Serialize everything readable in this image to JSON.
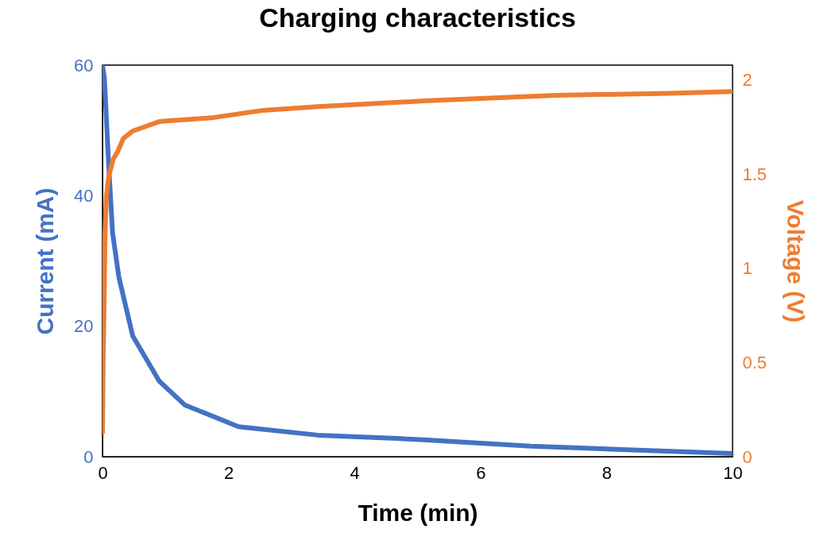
{
  "chart_data": {
    "type": "line",
    "title": "Charging characteristics",
    "xlabel": "Time (min)",
    "ylabel": "Current (mA)",
    "y2label": "Voltage (V)",
    "xlim": [
      0,
      10
    ],
    "xticks": [
      0,
      2,
      4,
      6,
      8,
      10
    ],
    "ylim": [
      0,
      60
    ],
    "yticks": [
      0,
      20,
      40,
      60
    ],
    "y2lim": [
      0,
      2.08
    ],
    "y2ticks": [
      0,
      0.5,
      1,
      1.5,
      2
    ],
    "grid": false,
    "line_style": "solid",
    "series": [
      {
        "color": "#4472c4",
        "x": [
          0,
          0.03,
          0.1,
          0.16,
          0.26,
          0.48,
          0.9,
          1.31,
          2.16,
          3.42,
          4.68,
          5.1,
          6.8,
          8.5,
          10
        ],
        "values": [
          60,
          58,
          44.4,
          34.3,
          27.5,
          18.5,
          11.6,
          7.9,
          4.6,
          3.3,
          2.8,
          2.6,
          1.6,
          1.0,
          0.5
        ]
      },
      {
        "color": "#ed7d31",
        "axis": "y2",
        "x": [
          0,
          0.01,
          0.03,
          0.04,
          0.06,
          0.1,
          0.17,
          0.24,
          0.33,
          0.48,
          0.9,
          1.73,
          2.55,
          3.42,
          5.1,
          7.2,
          9,
          10
        ],
        "values": [
          0.13,
          0.5,
          0.9,
          1.19,
          1.38,
          1.49,
          1.58,
          1.62,
          1.69,
          1.73,
          1.78,
          1.8,
          1.84,
          1.86,
          1.89,
          1.92,
          1.93,
          1.94
        ]
      }
    ]
  }
}
